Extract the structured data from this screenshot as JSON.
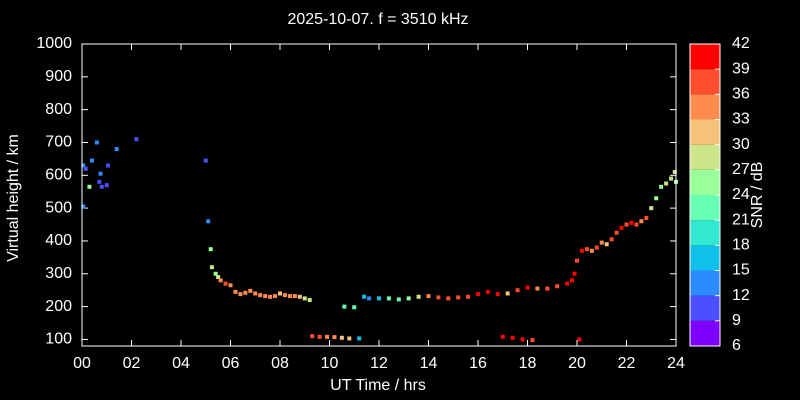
{
  "chart_data": {
    "type": "scatter",
    "title": "2025-10-07. f = 3510 kHz",
    "xlabel": "UT Time / hrs",
    "ylabel": "Virtual height / km",
    "xlim": [
      0,
      24
    ],
    "xticks": [
      {
        "value": 0,
        "label": "00"
      },
      {
        "value": 2,
        "label": "02"
      },
      {
        "value": 4,
        "label": "04"
      },
      {
        "value": 6,
        "label": "06"
      },
      {
        "value": 8,
        "label": "08"
      },
      10,
      12,
      14,
      16,
      18,
      20,
      22,
      24
    ],
    "ylim": [
      80,
      1000
    ],
    "yticks": [
      100,
      200,
      300,
      400,
      500,
      600,
      700,
      800,
      900,
      1000
    ],
    "x": [
      0.05,
      0.15,
      0.3,
      0.4,
      0.6,
      0.7,
      0.75,
      0.8,
      1.0,
      1.05,
      1.4,
      2.2,
      0.05,
      5.0,
      5.1,
      5.2,
      5.25,
      5.4,
      5.5,
      5.6,
      5.8,
      6.0,
      6.2,
      6.4,
      6.6,
      6.8,
      7.0,
      7.2,
      7.4,
      7.6,
      7.8,
      8.0,
      8.2,
      8.4,
      8.6,
      8.8,
      9.0,
      9.2,
      9.3,
      9.6,
      9.9,
      10.2,
      10.5,
      10.8,
      11.2,
      10.6,
      11.0,
      11.4,
      11.6,
      12.0,
      12.4,
      12.8,
      13.2,
      13.6,
      14.0,
      14.4,
      14.8,
      15.2,
      15.6,
      16.0,
      16.4,
      16.8,
      17.2,
      17.6,
      18.0,
      18.4,
      18.8,
      19.2,
      19.6,
      19.8,
      19.9,
      20.0,
      20.2,
      20.4,
      20.6,
      20.8,
      21.0,
      21.2,
      21.4,
      21.6,
      21.8,
      22.0,
      22.2,
      22.4,
      22.6,
      22.8,
      23.0,
      23.2,
      23.4,
      23.6,
      23.8,
      23.95,
      24.0,
      17.0,
      17.4,
      17.8,
      18.2,
      20.1
    ],
    "y": [
      630,
      620,
      565,
      645,
      700,
      580,
      605,
      565,
      570,
      630,
      680,
      710,
      505,
      645,
      460,
      375,
      320,
      300,
      290,
      280,
      270,
      265,
      245,
      238,
      242,
      248,
      240,
      235,
      232,
      230,
      232,
      240,
      235,
      232,
      232,
      230,
      225,
      220,
      110,
      108,
      108,
      107,
      105,
      103,
      103,
      200,
      198,
      230,
      225,
      225,
      225,
      222,
      225,
      230,
      232,
      228,
      225,
      228,
      230,
      238,
      245,
      238,
      240,
      250,
      258,
      255,
      255,
      262,
      270,
      280,
      300,
      340,
      370,
      375,
      370,
      380,
      395,
      390,
      405,
      425,
      440,
      450,
      455,
      450,
      460,
      470,
      500,
      530,
      565,
      575,
      590,
      610,
      580,
      108,
      105,
      100,
      98,
      100
    ],
    "snr": [
      12,
      9,
      24,
      12,
      12,
      9,
      12,
      9,
      9,
      9,
      12,
      9,
      12,
      9,
      12,
      24,
      27,
      24,
      27,
      33,
      36,
      33,
      33,
      33,
      33,
      33,
      33,
      33,
      33,
      33,
      33,
      30,
      33,
      33,
      33,
      30,
      27,
      27,
      36,
      36,
      33,
      33,
      30,
      30,
      15,
      21,
      21,
      15,
      12,
      15,
      21,
      21,
      24,
      27,
      33,
      36,
      36,
      36,
      36,
      39,
      39,
      39,
      30,
      36,
      39,
      33,
      36,
      36,
      39,
      39,
      39,
      36,
      39,
      36,
      33,
      36,
      33,
      30,
      36,
      36,
      39,
      36,
      39,
      36,
      33,
      36,
      27,
      24,
      24,
      27,
      27,
      27,
      24,
      39,
      39,
      39,
      36,
      39
    ],
    "colorbar": {
      "label": "SNR / dB",
      "zlim": [
        6,
        42
      ],
      "zticks": [
        6,
        9,
        12,
        15,
        18,
        21,
        24,
        27,
        30,
        33,
        36,
        39,
        42
      ],
      "colors": [
        "#7f00ff",
        "#4a50ff",
        "#2c8cff",
        "#10c0e8",
        "#33e8d0",
        "#66ffb3",
        "#99ff99",
        "#cce58a",
        "#f4c27a",
        "#ff8c4c",
        "#ff4d2e",
        "#ff0000"
      ]
    }
  }
}
